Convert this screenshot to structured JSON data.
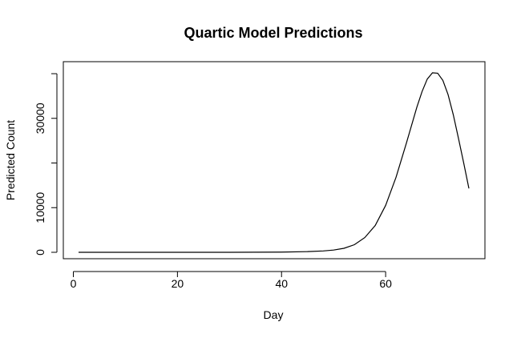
{
  "chart_data": {
    "type": "line",
    "title": "Quartic Model Predictions",
    "xlabel": "Day",
    "ylabel": "Predicted Count",
    "xlim": [
      1,
      76
    ],
    "ylim": [
      0,
      40000
    ],
    "x_ticks": [
      0,
      20,
      40,
      60
    ],
    "y_ticks": [
      0,
      10000,
      20000,
      30000,
      40000
    ],
    "y_tick_labels": [
      "0",
      "10000",
      "",
      "30000",
      ""
    ],
    "grid": false,
    "legend": "none",
    "line_color": "#000000",
    "series": [
      {
        "x": [
          1,
          10,
          20,
          30,
          40,
          45,
          48,
          50,
          52,
          54,
          56,
          58,
          60,
          62,
          64,
          66,
          67,
          68,
          69,
          70,
          71,
          72,
          73,
          74,
          75,
          76
        ],
        "values": [
          0,
          0,
          0,
          0,
          50,
          150,
          300,
          500,
          900,
          1700,
          3300,
          6000,
          10500,
          16800,
          24500,
          32500,
          36000,
          38800,
          40200,
          40100,
          38500,
          35300,
          30800,
          25500,
          20000,
          14300
        ]
      }
    ]
  }
}
